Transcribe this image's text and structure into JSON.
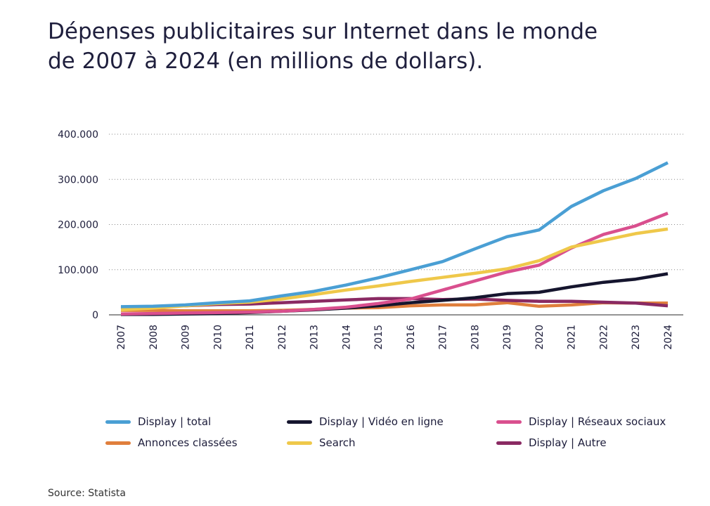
{
  "chart_data": {
    "type": "line",
    "title": "Dépenses publicitaires sur Internet dans le monde de 2007 à 2024 (en millions de dollars).",
    "xlabel": "",
    "ylabel": "",
    "x": [
      "2007",
      "2008",
      "2009",
      "2010",
      "2011",
      "2012",
      "2013",
      "2014",
      "2015",
      "2016",
      "2017",
      "2018",
      "2019",
      "2020",
      "2021",
      "2022",
      "2023",
      "2024"
    ],
    "ylim": [
      0,
      400000
    ],
    "yticks": [
      0,
      100000,
      200000,
      300000,
      400000
    ],
    "ytick_labels": [
      "0",
      "100.000",
      "200.000",
      "300.000",
      "400.000"
    ],
    "grid": "horizontal dotted",
    "legend_placement": "bottom",
    "series": [
      {
        "name": "Annonces classées",
        "color": "#e07f3c",
        "values": [
          10000,
          10000,
          9000,
          9000,
          9000,
          10000,
          12000,
          15000,
          16000,
          20000,
          22000,
          22000,
          27000,
          19000,
          22000,
          27000,
          26000,
          26000
        ]
      },
      {
        "name": "Display | Autre",
        "color": "#8a2a63",
        "values": [
          15000,
          18000,
          20000,
          23000,
          24000,
          27000,
          30000,
          33000,
          36000,
          36000,
          34000,
          35000,
          32000,
          30000,
          30000,
          28000,
          26000,
          20000
        ]
      },
      {
        "name": "Display | Vidéo en ligne",
        "color": "#15152e",
        "values": [
          1000,
          1000,
          2000,
          3000,
          5000,
          8000,
          11000,
          15000,
          20000,
          27000,
          32000,
          38000,
          47000,
          50000,
          62000,
          72000,
          79000,
          91000
        ]
      },
      {
        "name": "Display | Réseaux sociaux",
        "color": "#d94f8e",
        "values": [
          2000,
          3000,
          4000,
          5000,
          6000,
          8000,
          12000,
          17000,
          25000,
          35000,
          55000,
          75000,
          95000,
          110000,
          148000,
          178000,
          197000,
          225000
        ]
      },
      {
        "name": "Search",
        "color": "#efc84a",
        "values": [
          11000,
          15000,
          20000,
          25000,
          28000,
          35000,
          45000,
          55000,
          64000,
          74000,
          83000,
          92000,
          102000,
          120000,
          150000,
          165000,
          180000,
          190000
        ]
      },
      {
        "name": "Display | total",
        "color": "#4a9fd4",
        "values": [
          18000,
          19000,
          22000,
          27000,
          31000,
          42000,
          52000,
          66000,
          82000,
          100000,
          118000,
          146000,
          173000,
          188000,
          240000,
          275000,
          302000,
          337000
        ]
      }
    ]
  },
  "legend": [
    {
      "name": "Display | total",
      "color": "#4a9fd4"
    },
    {
      "name": "Display | Vidéo en ligne",
      "color": "#15152e"
    },
    {
      "name": "Display | Réseaux sociaux",
      "color": "#d94f8e"
    },
    {
      "name": "Annonces classées",
      "color": "#e07f3c"
    },
    {
      "name": "Search",
      "color": "#efc84a"
    },
    {
      "name": "Display | Autre",
      "color": "#8a2a63"
    }
  ],
  "source": "Source: Statista"
}
